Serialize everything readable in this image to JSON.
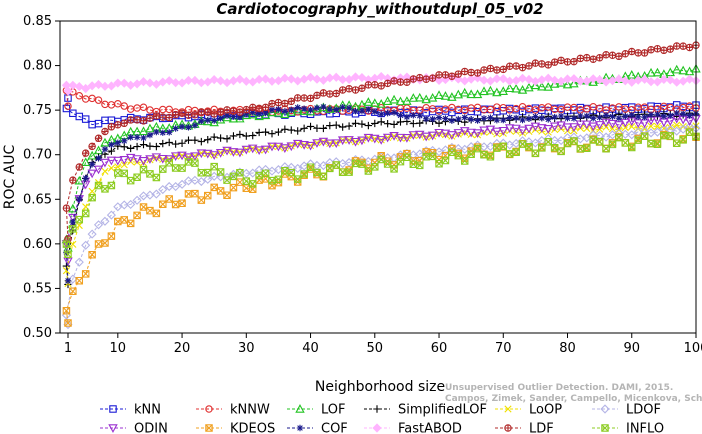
{
  "chart_data": {
    "type": "line",
    "title": "Cardiotocography_withoutdupl_05_v02",
    "xlabel": "Neighborhood size",
    "ylabel": "ROC AUC",
    "xlim": [
      1,
      100
    ],
    "ylim": [
      0.5,
      0.85
    ],
    "xticks": [
      1,
      10,
      20,
      30,
      40,
      50,
      60,
      70,
      80,
      90,
      100
    ],
    "yticks": [
      0.5,
      0.55,
      0.6,
      0.65,
      0.7,
      0.75,
      0.8,
      0.85
    ],
    "grid": false,
    "legend_position": "bottom",
    "series": [
      {
        "name": "kNN",
        "color": "#1a1ad6",
        "marker": "square",
        "anchors": [
          [
            1,
            0.763
          ],
          [
            2,
            0.752
          ],
          [
            4,
            0.742
          ],
          [
            6,
            0.735
          ],
          [
            8,
            0.737
          ],
          [
            10,
            0.739
          ],
          [
            15,
            0.741
          ],
          [
            20,
            0.743
          ],
          [
            30,
            0.745
          ],
          [
            40,
            0.747
          ],
          [
            50,
            0.748
          ],
          [
            60,
            0.749
          ],
          [
            70,
            0.75
          ],
          [
            80,
            0.751
          ],
          [
            90,
            0.752
          ],
          [
            100,
            0.755
          ]
        ]
      },
      {
        "name": "kNNW",
        "color": "#e03030",
        "marker": "circle",
        "anchors": [
          [
            1,
            0.755
          ],
          [
            2,
            0.772
          ],
          [
            3,
            0.77
          ],
          [
            5,
            0.764
          ],
          [
            8,
            0.758
          ],
          [
            12,
            0.753
          ],
          [
            16,
            0.75
          ],
          [
            20,
            0.749
          ],
          [
            30,
            0.749
          ],
          [
            40,
            0.75
          ],
          [
            50,
            0.751
          ],
          [
            60,
            0.751
          ],
          [
            70,
            0.752
          ],
          [
            80,
            0.752
          ],
          [
            90,
            0.752
          ],
          [
            100,
            0.753
          ]
        ]
      },
      {
        "name": "LOF",
        "color": "#22c322",
        "marker": "triangle-up",
        "anchors": [
          [
            1,
            0.595
          ],
          [
            2,
            0.605
          ],
          [
            3,
            0.64
          ],
          [
            4,
            0.67
          ],
          [
            5,
            0.69
          ],
          [
            6,
            0.7
          ],
          [
            8,
            0.712
          ],
          [
            10,
            0.72
          ],
          [
            14,
            0.728
          ],
          [
            20,
            0.733
          ],
          [
            30,
            0.743
          ],
          [
            40,
            0.75
          ],
          [
            50,
            0.758
          ],
          [
            60,
            0.765
          ],
          [
            70,
            0.772
          ],
          [
            80,
            0.78
          ],
          [
            90,
            0.788
          ],
          [
            100,
            0.796
          ]
        ]
      },
      {
        "name": "SimplifiedLOF",
        "color": "#000000",
        "marker": "plus",
        "anchors": [
          [
            1,
            0.555
          ],
          [
            2,
            0.575
          ],
          [
            3,
            0.615
          ],
          [
            4,
            0.65
          ],
          [
            5,
            0.675
          ],
          [
            6,
            0.69
          ],
          [
            8,
            0.702
          ],
          [
            10,
            0.708
          ],
          [
            15,
            0.71
          ],
          [
            20,
            0.714
          ],
          [
            30,
            0.722
          ],
          [
            40,
            0.73
          ],
          [
            50,
            0.735
          ],
          [
            60,
            0.737
          ],
          [
            70,
            0.74
          ],
          [
            80,
            0.742
          ],
          [
            90,
            0.744
          ],
          [
            100,
            0.745
          ]
        ]
      },
      {
        "name": "LoOP",
        "color": "#f0e000",
        "marker": "cross",
        "anchors": [
          [
            1,
            0.555
          ],
          [
            2,
            0.57
          ],
          [
            3,
            0.6
          ],
          [
            5,
            0.64
          ],
          [
            6,
            0.66
          ],
          [
            8,
            0.68
          ],
          [
            10,
            0.688
          ],
          [
            15,
            0.694
          ],
          [
            20,
            0.698
          ],
          [
            30,
            0.705
          ],
          [
            40,
            0.712
          ],
          [
            50,
            0.718
          ],
          [
            60,
            0.722
          ],
          [
            70,
            0.725
          ],
          [
            80,
            0.728
          ],
          [
            90,
            0.73
          ],
          [
            100,
            0.732
          ]
        ]
      },
      {
        "name": "LDOF",
        "color": "#b4b4e6",
        "marker": "diamond",
        "anchors": [
          [
            1,
            0.51
          ],
          [
            2,
            0.52
          ],
          [
            3,
            0.56
          ],
          [
            5,
            0.6
          ],
          [
            7,
            0.62
          ],
          [
            10,
            0.64
          ],
          [
            15,
            0.655
          ],
          [
            20,
            0.668
          ],
          [
            30,
            0.68
          ],
          [
            40,
            0.688
          ],
          [
            50,
            0.695
          ],
          [
            60,
            0.705
          ],
          [
            70,
            0.712
          ],
          [
            80,
            0.718
          ],
          [
            90,
            0.724
          ],
          [
            100,
            0.73
          ]
        ]
      },
      {
        "name": "ODIN",
        "color": "#9b30d0",
        "marker": "triangle-down",
        "anchors": [
          [
            1,
            0.58
          ],
          [
            2,
            0.6
          ],
          [
            3,
            0.63
          ],
          [
            4,
            0.65
          ],
          [
            5,
            0.665
          ],
          [
            6,
            0.68
          ],
          [
            8,
            0.69
          ],
          [
            10,
            0.695
          ],
          [
            15,
            0.695
          ],
          [
            20,
            0.698
          ],
          [
            30,
            0.705
          ],
          [
            40,
            0.712
          ],
          [
            50,
            0.718
          ],
          [
            60,
            0.723
          ],
          [
            70,
            0.728
          ],
          [
            80,
            0.732
          ],
          [
            90,
            0.736
          ],
          [
            100,
            0.74
          ]
        ]
      },
      {
        "name": "KDEOS",
        "color": "#f0a020",
        "marker": "square-x",
        "anchors": [
          [
            1,
            0.513
          ],
          [
            2,
            0.525
          ],
          [
            3,
            0.545
          ],
          [
            4,
            0.56
          ],
          [
            5,
            0.572
          ],
          [
            6,
            0.585
          ],
          [
            8,
            0.605
          ],
          [
            10,
            0.62
          ],
          [
            13,
            0.633
          ],
          [
            16,
            0.64
          ],
          [
            20,
            0.65
          ],
          [
            30,
            0.665
          ],
          [
            40,
            0.678
          ],
          [
            50,
            0.692
          ],
          [
            60,
            0.7
          ],
          [
            70,
            0.705
          ],
          [
            80,
            0.71
          ],
          [
            90,
            0.715
          ],
          [
            100,
            0.72
          ]
        ]
      },
      {
        "name": "COF",
        "color": "#1a1a8c",
        "marker": "asterisk",
        "anchors": [
          [
            1,
            0.558
          ],
          [
            2,
            0.59
          ],
          [
            3,
            0.625
          ],
          [
            4,
            0.65
          ],
          [
            5,
            0.672
          ],
          [
            6,
            0.69
          ],
          [
            8,
            0.705
          ],
          [
            10,
            0.715
          ],
          [
            15,
            0.722
          ],
          [
            20,
            0.73
          ],
          [
            25,
            0.74
          ],
          [
            30,
            0.745
          ],
          [
            35,
            0.75
          ],
          [
            40,
            0.752
          ],
          [
            45,
            0.752
          ],
          [
            50,
            0.748
          ],
          [
            60,
            0.74
          ],
          [
            70,
            0.74
          ],
          [
            80,
            0.742
          ],
          [
            90,
            0.743
          ],
          [
            100,
            0.746
          ]
        ]
      },
      {
        "name": "FastABOD",
        "color": "#ffb4ff",
        "marker": "diamond-filled",
        "anchors": [
          [
            1,
            0.772
          ],
          [
            2,
            0.778
          ],
          [
            5,
            0.776
          ],
          [
            10,
            0.779
          ],
          [
            20,
            0.782
          ],
          [
            30,
            0.783
          ],
          [
            40,
            0.785
          ],
          [
            50,
            0.786
          ],
          [
            60,
            0.785
          ],
          [
            70,
            0.784
          ],
          [
            80,
            0.784
          ],
          [
            90,
            0.783
          ],
          [
            100,
            0.783
          ]
        ]
      },
      {
        "name": "LDF",
        "color": "#b02828",
        "marker": "circle-plus",
        "anchors": [
          [
            1,
            0.605
          ],
          [
            2,
            0.64
          ],
          [
            3,
            0.672
          ],
          [
            5,
            0.7
          ],
          [
            7,
            0.72
          ],
          [
            10,
            0.735
          ],
          [
            15,
            0.741
          ],
          [
            20,
            0.745
          ],
          [
            30,
            0.75
          ],
          [
            40,
            0.765
          ],
          [
            50,
            0.778
          ],
          [
            60,
            0.788
          ],
          [
            70,
            0.797
          ],
          [
            80,
            0.805
          ],
          [
            90,
            0.814
          ],
          [
            100,
            0.823
          ]
        ]
      },
      {
        "name": "INFLO",
        "color": "#8ccc20",
        "marker": "square-x",
        "anchors": [
          [
            1,
            0.59
          ],
          [
            2,
            0.6
          ],
          [
            3,
            0.615
          ],
          [
            5,
            0.64
          ],
          [
            7,
            0.66
          ],
          [
            10,
            0.675
          ],
          [
            15,
            0.678
          ],
          [
            20,
            0.69
          ],
          [
            30,
            0.672
          ],
          [
            40,
            0.68
          ],
          [
            50,
            0.688
          ],
          [
            60,
            0.695
          ],
          [
            70,
            0.705
          ],
          [
            80,
            0.71
          ],
          [
            90,
            0.714
          ],
          [
            100,
            0.72
          ]
        ]
      }
    ],
    "legend_order": [
      "kNN",
      "kNNW",
      "LOF",
      "SimplifiedLOF",
      "LoOP",
      "LDOF",
      "ODIN",
      "KDEOS",
      "COF",
      "FastABOD",
      "LDF",
      "INFLO"
    ]
  },
  "watermark": {
    "line1": "Unsupervised Outlier Detection. DAMI, 2015.",
    "line2": "Campos, Zimek, Sander, Campello, Micenkova, Schubert, Assent, Houle"
  }
}
